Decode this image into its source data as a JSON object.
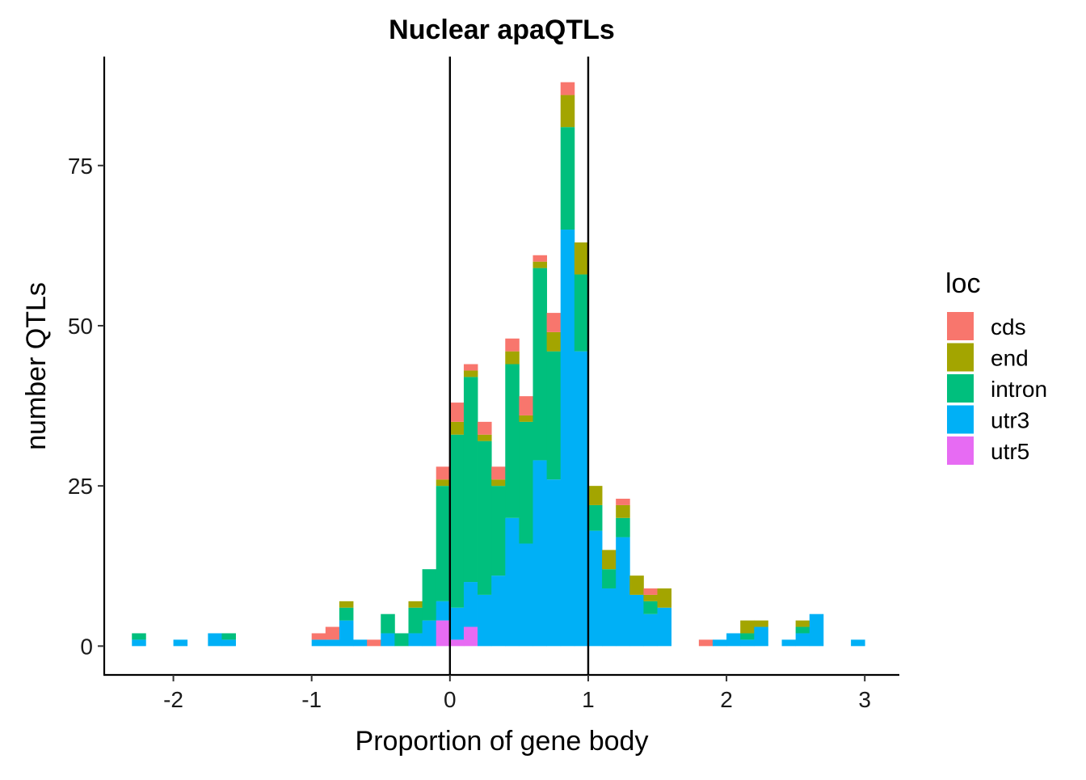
{
  "chart_data": {
    "type": "bar",
    "stacked": true,
    "title": "Nuclear apaQTLs",
    "xlabel": "Proportion of gene body",
    "ylabel": "number QTLs",
    "xlim": [
      -2.5,
      3.25
    ],
    "ylim": [
      -4.5,
      92
    ],
    "x_ticks": [
      -2,
      -1,
      0,
      1,
      2,
      3
    ],
    "x_tick_labels": [
      "-2",
      "-1",
      "0",
      "1",
      "2",
      "3"
    ],
    "y_ticks": [
      0,
      25,
      50,
      75
    ],
    "y_tick_labels": [
      "0",
      "25",
      "50",
      "75"
    ],
    "bin_width": 0.1,
    "vlines": [
      0,
      1
    ],
    "grid": false,
    "legend": {
      "title": "loc",
      "position": "right"
    },
    "series_colors": {
      "cds": "#F8766D",
      "end": "#A3A500",
      "intron": "#00BF7D",
      "utr3": "#00B0F6",
      "utr5": "#E76BF3"
    },
    "stack_order": [
      "utr5",
      "utr3",
      "intron",
      "end",
      "cds"
    ],
    "bins": [
      {
        "x": -2.25,
        "utr3": 1,
        "intron": 1
      },
      {
        "x": -1.95,
        "utr3": 1
      },
      {
        "x": -1.7,
        "utr3": 2
      },
      {
        "x": -1.6,
        "utr3": 1,
        "intron": 1
      },
      {
        "x": -0.95,
        "utr3": 1,
        "cds": 1
      },
      {
        "x": -0.85,
        "utr3": 1,
        "cds": 2
      },
      {
        "x": -0.75,
        "utr3": 4,
        "intron": 2,
        "end": 1
      },
      {
        "x": -0.65,
        "utr3": 1
      },
      {
        "x": -0.55,
        "cds": 1
      },
      {
        "x": -0.45,
        "utr3": 2,
        "intron": 3
      },
      {
        "x": -0.35,
        "intron": 2
      },
      {
        "x": -0.25,
        "utr3": 2,
        "intron": 4,
        "end": 1
      },
      {
        "x": -0.15,
        "utr3": 4,
        "intron": 8
      },
      {
        "x": -0.05,
        "utr5": 4,
        "utr3": 3,
        "intron": 18,
        "end": 1,
        "cds": 2
      },
      {
        "x": 0.05,
        "utr5": 1,
        "utr3": 5,
        "intron": 27,
        "end": 2,
        "cds": 3
      },
      {
        "x": 0.15,
        "utr5": 3,
        "utr3": 7,
        "intron": 32,
        "end": 1,
        "cds": 1
      },
      {
        "x": 0.25,
        "utr3": 8,
        "intron": 24,
        "end": 1,
        "cds": 2
      },
      {
        "x": 0.35,
        "utr3": 11,
        "intron": 14,
        "end": 1,
        "cds": 2
      },
      {
        "x": 0.45,
        "utr3": 20,
        "intron": 24,
        "end": 2,
        "cds": 2
      },
      {
        "x": 0.55,
        "utr3": 16,
        "intron": 19,
        "end": 1,
        "cds": 3
      },
      {
        "x": 0.65,
        "utr3": 29,
        "intron": 30,
        "end": 1,
        "cds": 1
      },
      {
        "x": 0.75,
        "utr3": 26,
        "intron": 20,
        "end": 3,
        "cds": 3
      },
      {
        "x": 0.85,
        "utr3": 65,
        "intron": 16,
        "end": 5,
        "cds": 2
      },
      {
        "x": 0.95,
        "utr3": 46,
        "intron": 12,
        "end": 5
      },
      {
        "x": 1.05,
        "utr3": 18,
        "intron": 4,
        "end": 3
      },
      {
        "x": 1.15,
        "utr3": 9,
        "intron": 3,
        "end": 3
      },
      {
        "x": 1.25,
        "utr3": 17,
        "intron": 3,
        "end": 2,
        "cds": 1
      },
      {
        "x": 1.35,
        "utr3": 8,
        "end": 3
      },
      {
        "x": 1.45,
        "utr3": 5,
        "intron": 2,
        "end": 1,
        "cds": 1
      },
      {
        "x": 1.55,
        "utr3": 6,
        "end": 3
      },
      {
        "x": 1.85,
        "cds": 1
      },
      {
        "x": 1.95,
        "utr3": 1
      },
      {
        "x": 2.05,
        "utr3": 2
      },
      {
        "x": 2.15,
        "utr3": 1,
        "intron": 1,
        "end": 2
      },
      {
        "x": 2.25,
        "utr3": 3,
        "end": 1
      },
      {
        "x": 2.45,
        "utr3": 1
      },
      {
        "x": 2.55,
        "utr3": 2,
        "intron": 1,
        "end": 1
      },
      {
        "x": 2.65,
        "utr3": 5
      },
      {
        "x": 2.95,
        "utr3": 1
      }
    ]
  }
}
